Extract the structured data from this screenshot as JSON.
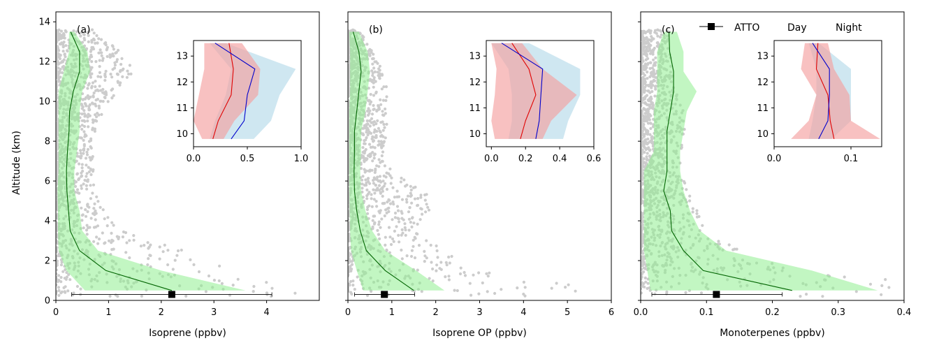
{
  "figure": {
    "ylabel": "Altitude (km)",
    "legend": {
      "atto_label": "ATTO",
      "day_label": "Day",
      "night_label": "Night",
      "day_color": "#e00000",
      "night_color": "#0000cc"
    },
    "colors": {
      "scatter": "#cccccc",
      "median_line": "#006400",
      "band": "#90ee90",
      "day_band": "#f4a0a0",
      "night_band": "#a8d4e6"
    }
  },
  "chart_data": [
    {
      "type": "line",
      "panel_label": "(a)",
      "xlabel": "Isoprene (ppbv)",
      "ylabel": "Altitude (km)",
      "xlim": [
        0,
        5
      ],
      "ylim": [
        0,
        14.5
      ],
      "xticks": [
        "0",
        "1",
        "2",
        "3",
        "4"
      ],
      "xtick_values": [
        0,
        1,
        2,
        3,
        4
      ],
      "yticks": [
        "0",
        "2",
        "4",
        "6",
        "8",
        "10",
        "12",
        "14"
      ],
      "ytick_values": [
        0,
        2,
        4,
        6,
        8,
        10,
        12,
        14
      ],
      "median_profile": {
        "altitude": [
          0.5,
          1.5,
          2.5,
          3.5,
          4.5,
          5.5,
          6.5,
          7.5,
          8.5,
          9.5,
          10.5,
          11.5,
          12.5,
          13.5
        ],
        "median": [
          2.2,
          0.95,
          0.45,
          0.27,
          0.24,
          0.21,
          0.2,
          0.22,
          0.25,
          0.26,
          0.33,
          0.45,
          0.45,
          0.28
        ],
        "p25": [
          0.55,
          0.2,
          0.05,
          0.04,
          0.04,
          0.03,
          0.05,
          0.05,
          0.05,
          0.05,
          0.05,
          0.15,
          0.25,
          0.25
        ],
        "p75": [
          3.6,
          2.0,
          0.8,
          0.5,
          0.45,
          0.35,
          0.35,
          0.4,
          0.45,
          0.45,
          0.5,
          0.65,
          0.6,
          0.35
        ]
      },
      "atto": {
        "altitude": 0.3,
        "value": 2.2,
        "xerr_low": 0.3,
        "xerr_high": 4.1
      },
      "scatter_extent": {
        "max_by_altitude": [
          [
            0.5,
            4.9
          ],
          [
            1.0,
            4.5
          ],
          [
            1.5,
            3.3
          ],
          [
            2.5,
            2.6
          ],
          [
            3.5,
            1.3
          ],
          [
            5.0,
            0.8
          ],
          [
            7.0,
            0.7
          ],
          [
            9.0,
            0.8
          ],
          [
            10.5,
            1.2
          ],
          [
            11.5,
            1.5
          ],
          [
            12.3,
            1.35
          ],
          [
            13.5,
            0.7
          ]
        ]
      },
      "inset": {
        "xlim": [
          0,
          1.0
        ],
        "ylim": [
          9.5,
          13.6
        ],
        "xticks": [
          "0.0",
          "0.5",
          "1.0"
        ],
        "xtick_values": [
          0,
          0.5,
          1.0
        ],
        "yticks": [
          "10",
          "11",
          "12",
          "13"
        ],
        "ytick_values": [
          10,
          11,
          12,
          13
        ],
        "altitude": [
          9.8,
          10.5,
          11.5,
          12.5,
          13.5
        ],
        "day": {
          "median": [
            0.18,
            0.23,
            0.35,
            0.37,
            0.33
          ],
          "low": [
            0.08,
            0.0,
            0.05,
            0.1,
            0.1
          ],
          "high": [
            0.28,
            0.38,
            0.6,
            0.62,
            0.45
          ]
        },
        "night": {
          "median": [
            0.35,
            0.47,
            0.5,
            0.57,
            0.2
          ],
          "low": [
            0.15,
            0.2,
            0.3,
            0.35,
            0.15
          ],
          "high": [
            0.56,
            0.72,
            0.8,
            0.95,
            0.3
          ]
        }
      }
    },
    {
      "type": "line",
      "panel_label": "(b)",
      "xlabel": "Isoprene OP (ppbv)",
      "ylabel": "",
      "xlim": [
        0,
        6
      ],
      "ylim": [
        0,
        14.5
      ],
      "xticks": [
        "0",
        "1",
        "2",
        "3",
        "4",
        "5",
        "6"
      ],
      "xtick_values": [
        0,
        1,
        2,
        3,
        4,
        5,
        6
      ],
      "median_profile": {
        "altitude": [
          0.5,
          1.5,
          2.5,
          3.5,
          4.5,
          5.5,
          6.5,
          7.5,
          8.5,
          9.5,
          10.5,
          11.5,
          12.5,
          13.5
        ],
        "median": [
          1.5,
          0.85,
          0.42,
          0.28,
          0.2,
          0.15,
          0.14,
          0.15,
          0.15,
          0.2,
          0.25,
          0.3,
          0.25,
          0.12
        ],
        "p25": [
          0.35,
          0.2,
          0.07,
          0.05,
          0.04,
          0.03,
          0.03,
          0.03,
          0.03,
          0.03,
          0.05,
          0.05,
          0.05,
          0.03
        ],
        "p75": [
          2.2,
          1.55,
          0.85,
          0.55,
          0.4,
          0.3,
          0.28,
          0.3,
          0.3,
          0.4,
          0.45,
          0.5,
          0.45,
          0.25
        ]
      },
      "atto": {
        "altitude": 0.3,
        "value": 0.83,
        "xerr_low": 0.15,
        "xerr_high": 1.52
      },
      "scatter_extent": {
        "max_by_altitude": [
          [
            0.5,
            5.8
          ],
          [
            1.0,
            4.6
          ],
          [
            1.5,
            2.8
          ],
          [
            2.5,
            2.2
          ],
          [
            3.5,
            1.5
          ],
          [
            5.0,
            2.0
          ],
          [
            7.0,
            0.8
          ],
          [
            9.0,
            0.9
          ],
          [
            10.5,
            0.9
          ],
          [
            11.5,
            0.8
          ],
          [
            12.3,
            0.6
          ],
          [
            13.5,
            0.3
          ]
        ]
      },
      "inset": {
        "xlim": [
          -0.03,
          0.6
        ],
        "ylim": [
          9.5,
          13.6
        ],
        "xticks": [
          "0.0",
          "0.2",
          "0.4",
          "0.6"
        ],
        "xtick_values": [
          0,
          0.2,
          0.4,
          0.6
        ],
        "yticks": [
          "10",
          "11",
          "12",
          "13"
        ],
        "ytick_values": [
          10,
          11,
          12,
          13
        ],
        "altitude": [
          9.8,
          10.5,
          11.5,
          12.5,
          13.5
        ],
        "day": {
          "median": [
            0.17,
            0.2,
            0.26,
            0.22,
            0.12
          ],
          "low": [
            0.02,
            0.0,
            0.02,
            0.03,
            0.0
          ],
          "high": [
            0.3,
            0.35,
            0.5,
            0.3,
            0.18
          ]
        },
        "night": {
          "median": [
            0.26,
            0.28,
            0.29,
            0.3,
            0.06
          ],
          "low": [
            0.1,
            0.12,
            0.12,
            0.1,
            0.0
          ],
          "high": [
            0.42,
            0.45,
            0.52,
            0.52,
            0.22
          ]
        }
      }
    },
    {
      "type": "line",
      "panel_label": "(c)",
      "xlabel": "Monoterpenes (ppbv)",
      "ylabel": "",
      "xlim": [
        0,
        0.4
      ],
      "ylim": [
        0,
        14.5
      ],
      "xticks": [
        "0.0",
        "0.1",
        "0.2",
        "0.3",
        "0.4"
      ],
      "xtick_values": [
        0,
        0.1,
        0.2,
        0.3,
        0.4
      ],
      "median_profile": {
        "altitude": [
          0.5,
          1.5,
          2.5,
          3.5,
          4.5,
          5.5,
          6.5,
          7.5,
          8.5,
          9.5,
          10.5,
          11.5,
          12.5,
          13.5
        ],
        "median": [
          0.23,
          0.095,
          0.065,
          0.047,
          0.045,
          0.035,
          0.04,
          0.04,
          0.04,
          0.045,
          0.05,
          0.05,
          0.044,
          0.043
        ],
        "p25": [
          0.015,
          0.01,
          0.005,
          0.005,
          0.005,
          0.005,
          0.005,
          0.02,
          0.02,
          0.02,
          0.025,
          0.025,
          0.025,
          0.035
        ],
        "p75": [
          0.36,
          0.26,
          0.13,
          0.09,
          0.075,
          0.065,
          0.06,
          0.06,
          0.065,
          0.07,
          0.085,
          0.065,
          0.065,
          0.055
        ]
      },
      "atto": {
        "altitude": 0.3,
        "value": 0.115,
        "xerr_low": 0.017,
        "xerr_high": 0.215
      },
      "scatter_extent": {
        "max_by_altitude": [
          [
            0.5,
            0.4
          ],
          [
            1.0,
            0.39
          ],
          [
            1.5,
            0.23
          ],
          [
            2.5,
            0.15
          ],
          [
            3.5,
            0.1
          ],
          [
            5.0,
            0.08
          ],
          [
            7.0,
            0.06
          ],
          [
            9.0,
            0.07
          ],
          [
            10.5,
            0.055
          ],
          [
            11.5,
            0.05
          ],
          [
            12.3,
            0.045
          ],
          [
            13.5,
            0.045
          ]
        ]
      },
      "inset": {
        "xlim": [
          0,
          0.14
        ],
        "ylim": [
          9.5,
          13.6
        ],
        "xticks": [
          "0.0",
          "0.1"
        ],
        "xtick_values": [
          0,
          0.1
        ],
        "yticks": [
          "10",
          "11",
          "12",
          "13"
        ],
        "ytick_values": [
          10,
          11,
          12,
          13
        ],
        "altitude": [
          9.8,
          10.5,
          11.5,
          12.5,
          13.5
        ],
        "day": {
          "median": [
            0.078,
            0.073,
            0.07,
            0.055,
            0.057
          ],
          "low": [
            0.022,
            0.045,
            0.055,
            0.035,
            0.04
          ],
          "high": [
            0.138,
            0.1,
            0.098,
            0.078,
            0.07
          ]
        },
        "night": {
          "median": [
            0.058,
            0.07,
            0.072,
            0.072,
            0.05
          ],
          "low": [
            0.045,
            0.05,
            0.055,
            0.055,
            0.045
          ],
          "high": [
            0.075,
            0.1,
            0.1,
            0.1,
            0.058
          ]
        }
      }
    }
  ]
}
